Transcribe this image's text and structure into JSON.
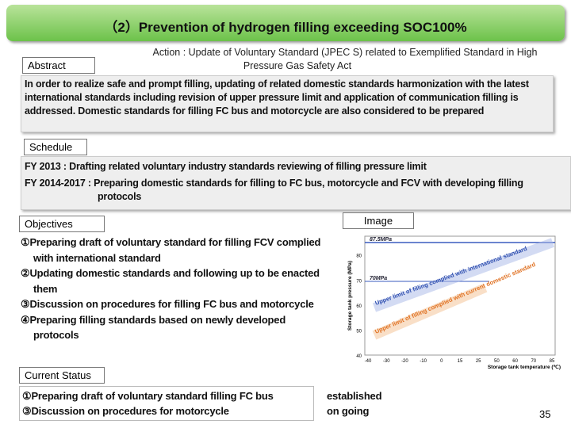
{
  "title": "（2）Prevention of hydrogen filling exceeding SOC100%",
  "action": [
    "Action : Update of  Voluntary Standard (JPEC S) related to Exemplified Standard in High",
    "Pressure Gas Safety Act"
  ],
  "abstract": {
    "label": "Abstract",
    "text": "In order to realize safe and prompt filling, updating of related domestic standards harmonization with the latest international standards including revision of upper pressure limit and application of communication filling is addressed. Domestic standards for filling FC bus and motorcycle are also considered to be prepared"
  },
  "schedule": {
    "label": "Schedule",
    "lines": [
      "FY 2013 : Drafting related voluntary industry standards reviewing of filling pressure limit",
      "FY 2014-2017 : Preparing domestic standards for filling to FC bus, motorcycle and FCV with developing filling protocols"
    ]
  },
  "objectives": {
    "label": "Objectives",
    "items": [
      "①Preparing draft of voluntary standard for filling FCV complied with international standard",
      "②Updating domestic standards and following up to be enacted them",
      "③Discussion on procedures for filling FC bus and motorcycle",
      "④Preparing filling standards based on newly developed protocols"
    ]
  },
  "image": {
    "label": "Image",
    "y_label": "Storage tank pressure (MPa)",
    "x_label": "Storage tank temperature (℃)",
    "yticks": [
      40,
      50,
      60,
      70,
      80
    ],
    "xticks": [
      -40,
      -30,
      -20,
      -10,
      0,
      15,
      25,
      50,
      60,
      70,
      85
    ],
    "annotations": [
      "87.5MPa",
      "70MPa",
      "Upper limit of filling complied with international standard",
      "Upper limit of filling complied with current domestic standard"
    ]
  },
  "status": {
    "label": "Current Status",
    "items": [
      {
        "text": "①Preparing draft of voluntary standard filling FC bus",
        "state": "established"
      },
      {
        "text": "③Discussion on procedures for motorcycle",
        "state": "on going"
      }
    ]
  },
  "page_number": "35"
}
